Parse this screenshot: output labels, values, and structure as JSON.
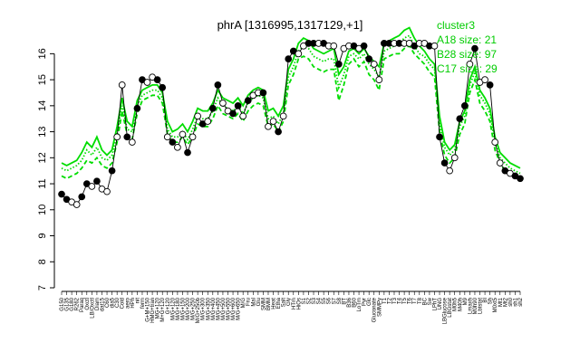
{
  "chart_data": {
    "type": "line",
    "title": "phrA [1316995,1317129,+1]",
    "ylim": [
      7,
      16.5
    ],
    "yticks": [
      7,
      8,
      9,
      10,
      11,
      12,
      13,
      14,
      15,
      16
    ],
    "colors": {
      "observed_line": "#000000",
      "cluster_lines": "#00dd00",
      "legend_text": "#00cc00",
      "point_fill_open": "#ffffff",
      "point_fill_closed": "#000000"
    },
    "legend": {
      "position": "top-right",
      "entries": [
        "cluster3",
        "A18 size: 21",
        "B28 size: 97",
        "C17 size: 29"
      ]
    },
    "categories": [
      "G150",
      "G135",
      "G180",
      "R262",
      "Paraq",
      "Oxctl",
      "LB/Oxctl",
      "Diam",
      "dat15",
      "C60",
      "dia5",
      "C30",
      "Cold",
      "aero",
      "HPh",
      "nit",
      "ferm",
      "G+M+150",
      "HMG+tran",
      "MG+120",
      "M+G+120",
      "G+120",
      "M/G+120",
      "M/G+180",
      "M/G+150",
      "M/G+200",
      "M/G+250",
      "M/G+250b",
      "M/G+300",
      "M/G+350",
      "M/G+400",
      "M/G+450",
      "M/G+500",
      "M/G+550",
      "M/G+600",
      "M/G+650",
      "M/G",
      "Fru",
      "Mal",
      "Glu",
      "SMM",
      "BMM",
      "Heat",
      "Etha",
      "Salt",
      "Gly",
      "HTm",
      "HiOs",
      "S1",
      "S2",
      "S3",
      "S4",
      "S5",
      "S6",
      "S7",
      "S8",
      "BT",
      "B36",
      "B60",
      "LoTm",
      "Pyr",
      "Glc",
      "Gluconate",
      "SMMPy",
      "T1",
      "T2",
      "T3",
      "T4",
      "T5",
      "T6",
      "T7",
      "T8",
      "BC",
      "Sw",
      "LPhT",
      "UNG",
      "LBGlucose",
      "LBGstat",
      "M0h5",
      "M40h",
      "M9",
      "Lmaxh",
      "M0h90",
      "Lbtstat",
      "BI",
      "Sh",
      "M0xt5",
      "Mt1",
      "Mt2",
      "sh0",
      "sh1",
      "sh2"
    ],
    "series": [
      {
        "name": "",
        "role": "observed mean",
        "values": [
          10.6,
          10.4,
          10.3,
          10.2,
          10.5,
          11.0,
          10.9,
          11.1,
          10.8,
          10.7,
          11.5,
          12.8,
          14.8,
          12.8,
          12.6,
          13.9,
          15.0,
          14.9,
          15.1,
          15.0,
          14.7,
          12.8,
          12.6,
          12.4,
          12.9,
          12.2,
          12.8,
          13.6,
          13.3,
          13.4,
          13.9,
          14.8,
          14.1,
          13.8,
          13.7,
          14.0,
          13.6,
          14.2,
          14.4,
          14.5,
          14.5,
          13.2,
          13.4,
          13.0,
          13.6,
          15.8,
          16.1,
          16.0,
          16.3,
          16.4,
          16.4,
          16.4,
          16.4,
          16.3,
          16.3,
          15.6,
          16.2,
          16.3,
          16.3,
          16.2,
          16.3,
          15.8,
          15.6,
          15.0,
          16.4,
          16.4,
          16.4,
          16.4,
          16.4,
          16.4,
          16.3,
          16.4,
          16.4,
          16.3,
          16.3,
          12.8,
          11.8,
          11.5,
          12.0,
          13.5,
          14.0,
          15.6,
          16.2,
          14.9,
          15.0,
          14.8,
          12.6,
          11.8,
          11.5,
          11.4,
          11.3,
          11.2
        ]
      },
      {
        "name": "",
        "role": "cluster A18",
        "style": "solid",
        "values": [
          11.8,
          11.7,
          11.8,
          11.9,
          12.2,
          12.6,
          12.4,
          12.8,
          12.3,
          12.1,
          12.3,
          13.2,
          14.3,
          13.4,
          13.2,
          14.2,
          14.6,
          14.7,
          14.8,
          14.8,
          14.5,
          13.4,
          13.0,
          13.1,
          13.3,
          13.0,
          13.4,
          13.9,
          13.8,
          13.8,
          14.1,
          14.6,
          14.3,
          14.2,
          14.1,
          14.3,
          14.0,
          14.4,
          14.6,
          14.7,
          14.6,
          13.8,
          13.9,
          13.6,
          14.0,
          15.4,
          15.8,
          16.4,
          16.6,
          16.5,
          16.2,
          16.1,
          16.0,
          16.1,
          16.2,
          15.2,
          15.5,
          16.1,
          16.2,
          16.0,
          16.2,
          15.9,
          15.7,
          15.5,
          16.4,
          16.5,
          16.6,
          16.7,
          16.9,
          17.0,
          16.6,
          16.3,
          16.1,
          15.8,
          15.6,
          13.6,
          12.6,
          12.3,
          12.5,
          13.4,
          13.8,
          15.0,
          15.5,
          14.6,
          14.3,
          13.9,
          12.8,
          12.2,
          12.0,
          11.8,
          11.7,
          11.6
        ]
      },
      {
        "name": "",
        "role": "cluster B28",
        "style": "dashed",
        "values": [
          11.3,
          11.2,
          11.3,
          11.4,
          11.6,
          11.9,
          11.8,
          12.0,
          11.7,
          11.6,
          11.8,
          12.6,
          13.8,
          12.9,
          12.7,
          13.7,
          14.2,
          14.3,
          14.4,
          14.4,
          14.1,
          12.9,
          12.6,
          12.6,
          12.8,
          12.5,
          12.8,
          13.3,
          13.2,
          13.2,
          13.5,
          14.0,
          13.7,
          13.6,
          13.5,
          13.7,
          13.4,
          13.8,
          14.0,
          14.1,
          14.0,
          13.2,
          13.3,
          13.0,
          13.4,
          14.8,
          15.2,
          15.8,
          15.9,
          15.8,
          15.5,
          15.4,
          15.3,
          15.4,
          15.4,
          14.2,
          14.8,
          15.6,
          15.8,
          15.5,
          15.7,
          15.2,
          15.0,
          14.6,
          15.8,
          15.9,
          16.0,
          16.0,
          16.2,
          16.3,
          16.0,
          15.8,
          15.6,
          15.3,
          15.1,
          13.0,
          12.1,
          11.8,
          12.0,
          12.9,
          13.3,
          14.5,
          15.0,
          14.1,
          13.8,
          13.4,
          12.3,
          11.8,
          11.5,
          11.4,
          11.3,
          11.2
        ]
      },
      {
        "name": "",
        "role": "cluster C17",
        "style": "dotted",
        "values": [
          11.6,
          11.5,
          11.6,
          11.7,
          11.9,
          12.3,
          12.1,
          12.4,
          12.0,
          11.9,
          12.1,
          12.9,
          14.0,
          13.1,
          13.0,
          14.0,
          14.4,
          14.5,
          14.6,
          14.6,
          14.3,
          13.1,
          12.8,
          12.8,
          13.0,
          12.7,
          13.1,
          13.6,
          13.5,
          13.5,
          13.8,
          14.3,
          14.0,
          13.9,
          13.8,
          14.0,
          13.7,
          14.1,
          14.3,
          14.4,
          14.3,
          13.5,
          13.6,
          13.3,
          13.7,
          15.1,
          15.5,
          16.1,
          16.3,
          16.2,
          15.9,
          15.8,
          15.7,
          15.8,
          15.8,
          14.7,
          15.2,
          15.9,
          16.0,
          15.8,
          16.0,
          15.6,
          15.4,
          15.1,
          16.1,
          16.2,
          16.3,
          16.4,
          16.6,
          16.7,
          16.3,
          16.0,
          15.9,
          15.6,
          15.4,
          13.3,
          12.4,
          12.1,
          12.3,
          13.2,
          13.6,
          14.8,
          15.3,
          14.4,
          14.1,
          13.7,
          12.6,
          12.0,
          11.8,
          11.6,
          11.5,
          11.4
        ]
      }
    ]
  }
}
